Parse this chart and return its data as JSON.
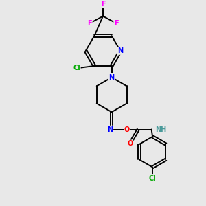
{
  "bg_color": "#e8e8e8",
  "bond_color": "#000000",
  "bond_width": 1.4,
  "atom_colors": {
    "C": "#000000",
    "N": "#0000ff",
    "O": "#ff0000",
    "F": "#ff00ff",
    "Cl": "#00aa00",
    "H": "#4a9a9a"
  },
  "figsize": [
    3.0,
    3.0
  ],
  "dpi": 100,
  "xlim": [
    0,
    10
  ],
  "ylim": [
    0,
    10
  ]
}
